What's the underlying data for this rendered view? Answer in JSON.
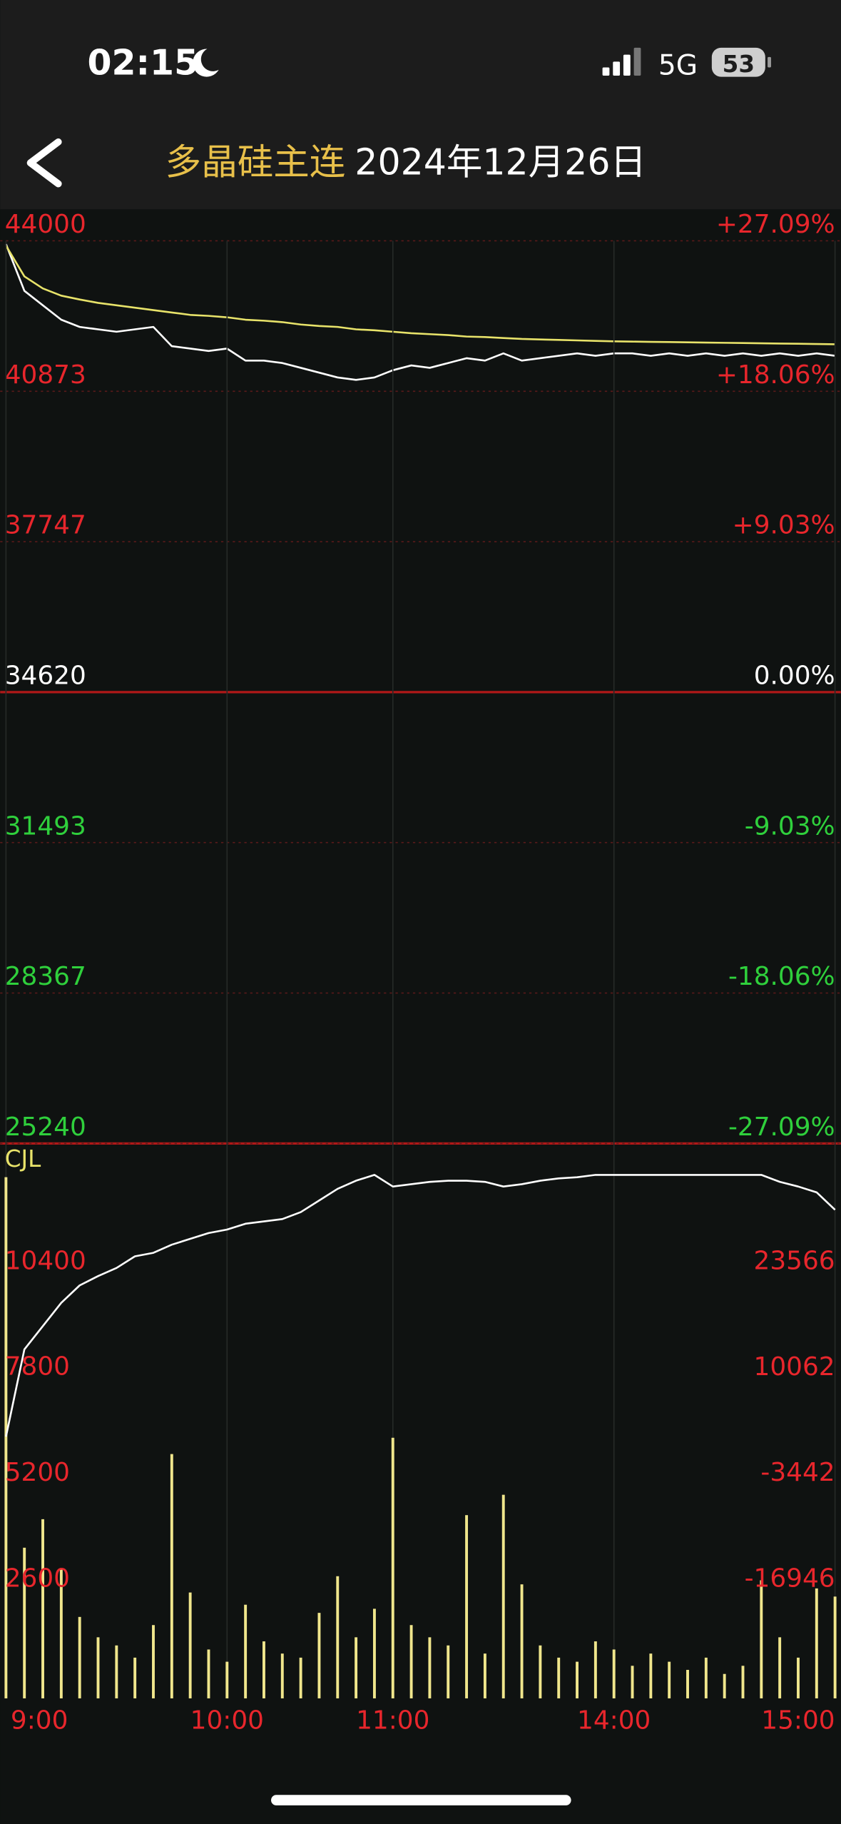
{
  "status": {
    "time": "02:15",
    "network": "5G",
    "battery": "53"
  },
  "header": {
    "title": "多晶硅主连",
    "date": "2024年12月26日"
  },
  "chart_data": [
    {
      "type": "line",
      "x": [
        0,
        5,
        10,
        15,
        20,
        25,
        30,
        35,
        40,
        45,
        50,
        55,
        60,
        65,
        70,
        75,
        80,
        85,
        90,
        95,
        100,
        105,
        110,
        115,
        120,
        125,
        130,
        135,
        140,
        145,
        150,
        155,
        160,
        165,
        170,
        175,
        180,
        185,
        190,
        195,
        200,
        205,
        210,
        215,
        220,
        225
      ],
      "xlim": [
        0,
        225
      ],
      "ylim": [
        25240,
        44000
      ],
      "yticks": [
        44000,
        40873,
        37747,
        34620,
        31493,
        28367,
        25240
      ],
      "y2lim": [
        -27.09,
        27.09
      ],
      "y2ticks": [
        {
          "value": 27.09,
          "label": "+27.09%"
        },
        {
          "value": 18.06,
          "label": "+18.06%"
        },
        {
          "value": 9.03,
          "label": "+9.03%"
        },
        {
          "value": 0,
          "label": "0.00%"
        },
        {
          "value": -9.03,
          "label": "-9.03%"
        },
        {
          "value": -18.06,
          "label": "-18.06%"
        },
        {
          "value": -27.09,
          "label": "-27.09%"
        }
      ],
      "grid": true,
      "colors": {
        "up": "#e8262c",
        "flat": "#ffffff",
        "down": "#2fd03c"
      },
      "series": [
        {
          "color": "#ffffff",
          "values": [
            43930,
            42960,
            42660,
            42360,
            42210,
            42160,
            42110,
            42160,
            42210,
            41810,
            41760,
            41710,
            41760,
            41510,
            41510,
            41460,
            41360,
            41260,
            41160,
            41110,
            41160,
            41310,
            41410,
            41360,
            41460,
            41560,
            41510,
            41660,
            41510,
            41560,
            41610,
            41660,
            41610,
            41660,
            41660,
            41610,
            41660,
            41610,
            41660,
            41610,
            41660,
            41610,
            41660,
            41610,
            41660,
            41610
          ]
        },
        {
          "color": "#e8e36a",
          "values": [
            43900,
            43260,
            43010,
            42860,
            42780,
            42710,
            42660,
            42610,
            42560,
            42510,
            42460,
            42440,
            42410,
            42360,
            42340,
            42310,
            42260,
            42230,
            42210,
            42160,
            42140,
            42110,
            42080,
            42060,
            42040,
            42010,
            42000,
            41980,
            41960,
            41950,
            41940,
            41930,
            41920,
            41910,
            41905,
            41900,
            41895,
            41890,
            41885,
            41880,
            41875,
            41870,
            41865,
            41860,
            41855,
            41850
          ]
        }
      ]
    },
    {
      "type": "bar",
      "ylabel": "CJL",
      "x": [
        0,
        5,
        10,
        15,
        20,
        25,
        30,
        35,
        40,
        45,
        50,
        55,
        60,
        65,
        70,
        75,
        80,
        85,
        90,
        95,
        100,
        105,
        110,
        115,
        120,
        125,
        130,
        135,
        140,
        145,
        150,
        155,
        160,
        165,
        170,
        175,
        180,
        185,
        190,
        195,
        200,
        205,
        210,
        215,
        220,
        225
      ],
      "xlim": [
        0,
        225
      ],
      "xticks": [
        {
          "value": 0,
          "label": "9:00"
        },
        {
          "value": 60,
          "label": "10:00"
        },
        {
          "value": 105,
          "label": "11:00"
        },
        {
          "value": 165,
          "label": "14:00"
        },
        {
          "value": 225,
          "label": "15:00"
        }
      ],
      "ylim": [
        0,
        13570
      ],
      "yticks": [
        10400,
        7800,
        5200,
        2600
      ],
      "y2lim": [
        -30450,
        40038
      ],
      "y2ticks": [
        23566,
        10062,
        -3442,
        -16946
      ],
      "tick_color": "#e8262c",
      "series": [
        {
          "type": "bar",
          "color": "#f0e68c",
          "values": [
            12800,
            3700,
            4400,
            3200,
            2000,
            1500,
            1300,
            1000,
            1800,
            6000,
            2600,
            1200,
            900,
            2300,
            1400,
            1100,
            1000,
            2100,
            3000,
            1500,
            2200,
            6400,
            1800,
            1500,
            1300,
            4500,
            1100,
            5000,
            2800,
            1300,
            1000,
            900,
            1400,
            1200,
            800,
            1100,
            900,
            700,
            1000,
            600,
            800,
            2900,
            1500,
            1000,
            2700,
            2500
          ]
        },
        {
          "type": "line",
          "axis": "y2",
          "color": "#ffffff",
          "values": [
            2939,
            14070,
            17038,
            20006,
            22232,
            23419,
            24458,
            25942,
            26387,
            27426,
            28168,
            28910,
            29355,
            30097,
            30394,
            30691,
            31581,
            33065,
            34549,
            35588,
            36330,
            34846,
            35143,
            35440,
            35588,
            35588,
            35440,
            34846,
            35143,
            35588,
            35885,
            36033,
            36330,
            36330,
            36330,
            36330,
            36330,
            36330,
            36330,
            36330,
            36330,
            36330,
            35440,
            34846,
            34104,
            31878
          ]
        }
      ]
    }
  ]
}
